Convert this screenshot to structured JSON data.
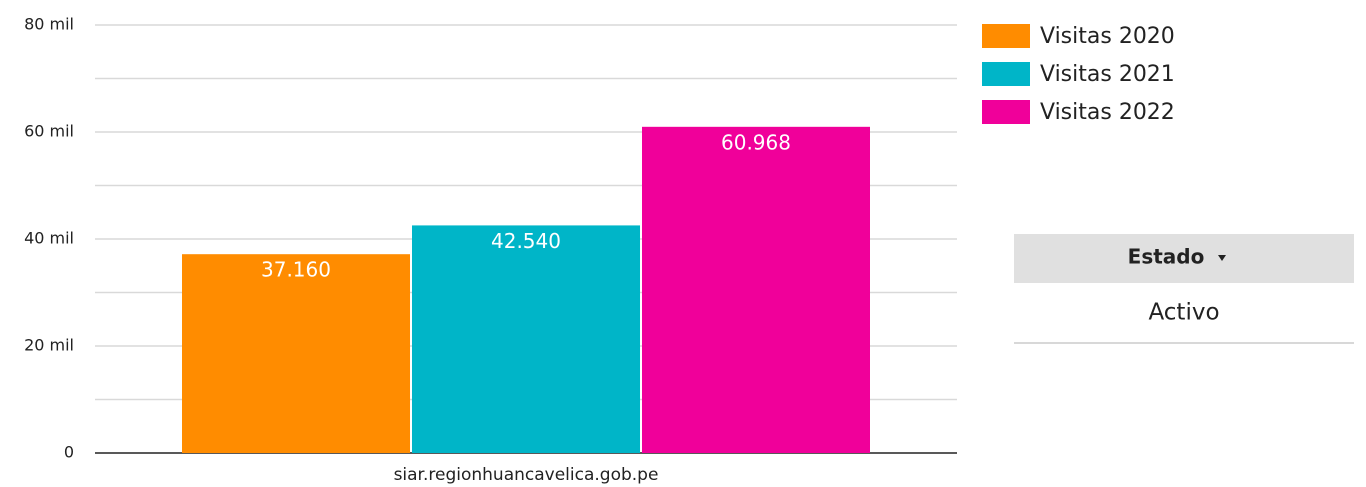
{
  "chart_data": {
    "type": "bar",
    "categories": [
      "siar.regionhuancavelica.gob.pe"
    ],
    "series": [
      {
        "name": "Visitas 2020",
        "color": "#ff8c00",
        "values": [
          37160
        ],
        "value_labels": [
          "37.160"
        ]
      },
      {
        "name": "Visitas 2021",
        "color": "#00b5c8",
        "values": [
          42540
        ],
        "value_labels": [
          "42.540"
        ]
      },
      {
        "name": "Visitas 2022",
        "color": "#f0009a",
        "values": [
          60968
        ],
        "value_labels": [
          "60.968"
        ]
      }
    ],
    "ylim": [
      0,
      80000
    ],
    "yticks": [
      0,
      {
        "value": 20000,
        "label": "20 mil"
      },
      {
        "value": 40000,
        "label": "40 mil"
      },
      {
        "value": 60000,
        "label": "60 mil"
      },
      {
        "value": 80000,
        "label": "80 mil"
      }
    ],
    "minor_yticks": [
      10000,
      30000,
      50000,
      70000
    ],
    "grid": true,
    "legend": "right"
  },
  "filter": {
    "label": "Estado",
    "value": "Activo"
  }
}
